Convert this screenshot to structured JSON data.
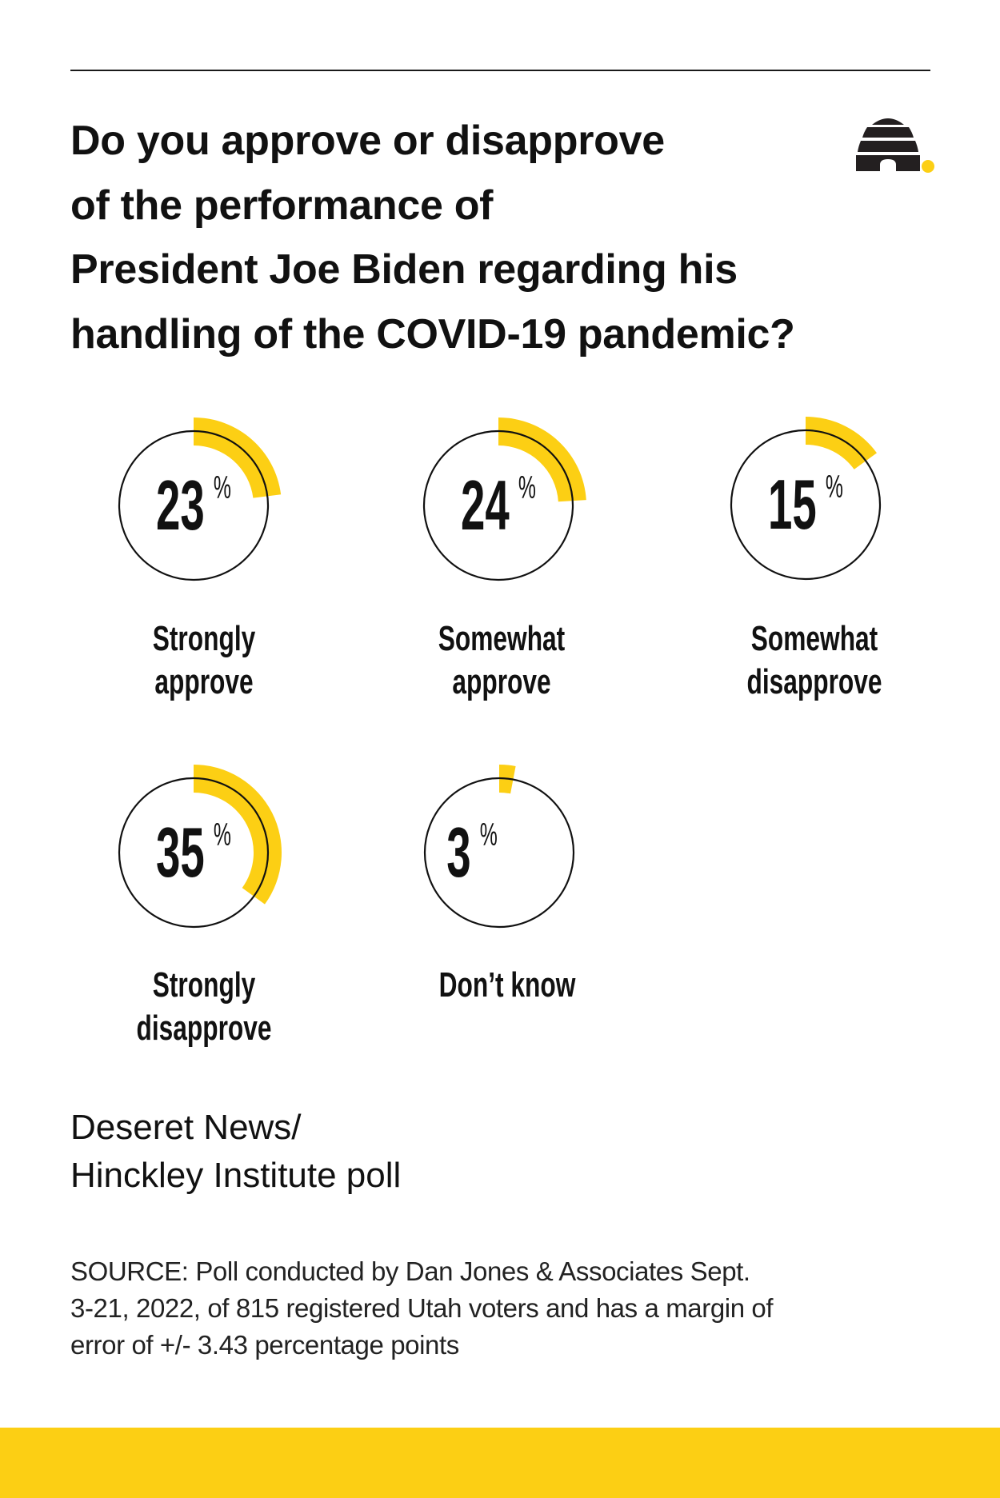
{
  "title": {
    "lines": [
      "Do you approve or disapprove",
      "of the performance of",
      "President Joe Biden regarding his",
      "handling of the COVID-19 pandemic?"
    ]
  },
  "logo": {
    "icon": "beehive-logo-icon",
    "dot_color": "#FCCF14"
  },
  "colors": {
    "accent": "#FCCF14",
    "ink": "#111111",
    "background": "#FFFFFF"
  },
  "chart_data": {
    "type": "pie",
    "title": "Do you approve or disapprove of the performance of President Joe Biden regarding his handling of the COVID-19 pandemic?",
    "unit": "%",
    "categories": [
      "Strongly approve",
      "Somewhat approve",
      "Somewhat disapprove",
      "Strongly disapprove",
      "Don't know"
    ],
    "values": [
      23,
      24,
      15,
      35,
      3
    ],
    "style": "individual radial gauges (one per response), yellow arc = share of 100%"
  },
  "stats": [
    {
      "value": "23",
      "unit": "%",
      "percent": 23,
      "label_lines": [
        "Strongly",
        "approve"
      ]
    },
    {
      "value": "24",
      "unit": "%",
      "percent": 24,
      "label_lines": [
        "Somewhat",
        "approve"
      ]
    },
    {
      "value": "15",
      "unit": "%",
      "percent": 15,
      "label_lines": [
        "Somewhat",
        "disapprove"
      ]
    },
    {
      "value": "35",
      "unit": "%",
      "percent": 35,
      "label_lines": [
        "Strongly",
        "disapprove"
      ]
    },
    {
      "value": "3",
      "unit": "%",
      "percent": 3,
      "label_lines": [
        "Don’t know"
      ]
    }
  ],
  "credit": {
    "lines": [
      "Deseret News/",
      "Hinckley Institute poll"
    ]
  },
  "source": {
    "lines": [
      "SOURCE: Poll conducted by Dan Jones & Associates Sept.",
      "3-21, 2022, of 815 registered Utah voters and has a margin of",
      "error of +/- 3.43 percentage points"
    ]
  }
}
